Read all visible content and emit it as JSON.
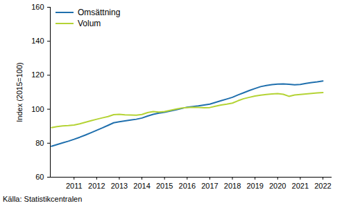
{
  "chart_data": {
    "type": "line",
    "x": [
      2010,
      2010.25,
      2010.5,
      2010.75,
      2011,
      2011.25,
      2011.5,
      2011.75,
      2012,
      2012.25,
      2012.5,
      2012.75,
      2013,
      2013.25,
      2013.5,
      2013.75,
      2014,
      2014.25,
      2014.5,
      2014.75,
      2015,
      2015.25,
      2015.5,
      2015.75,
      2016,
      2016.25,
      2016.5,
      2016.75,
      2017,
      2017.25,
      2017.5,
      2017.75,
      2018,
      2018.25,
      2018.5,
      2018.75,
      2019,
      2019.25,
      2019.5,
      2019.75,
      2020,
      2020.25,
      2020.5,
      2020.75,
      2021,
      2021.25,
      2021.5,
      2021.75,
      2022
    ],
    "series": [
      {
        "name": "Omsättning",
        "color": "#1f6fad",
        "values": [
          78.2,
          79.2,
          80.2,
          81.2,
          82.3,
          83.5,
          84.8,
          86.2,
          87.6,
          89.0,
          90.5,
          92.0,
          92.6,
          93.1,
          93.6,
          94.1,
          94.8,
          96.0,
          97.0,
          97.7,
          98.2,
          98.9,
          99.6,
          100.4,
          101.2,
          101.6,
          102.0,
          102.5,
          103.0,
          104.0,
          105.0,
          106.0,
          107.0,
          108.4,
          109.7,
          111.0,
          112.2,
          113.3,
          114.0,
          114.5,
          114.8,
          114.9,
          114.7,
          114.4,
          114.6,
          115.2,
          115.7,
          116.1,
          116.6
        ]
      },
      {
        "name": "Volum",
        "color": "#b4d334",
        "values": [
          89.2,
          89.8,
          90.2,
          90.4,
          90.7,
          91.4,
          92.3,
          93.2,
          94.1,
          94.9,
          95.7,
          96.8,
          97.0,
          96.7,
          96.6,
          96.5,
          96.9,
          98.0,
          98.6,
          98.3,
          98.6,
          99.3,
          100.0,
          100.7,
          101.0,
          101.2,
          101.1,
          100.9,
          101.0,
          101.8,
          102.5,
          103.0,
          103.6,
          105.0,
          106.2,
          107.0,
          107.8,
          108.3,
          108.7,
          109.0,
          109.2,
          108.8,
          107.6,
          108.4,
          108.7,
          109.0,
          109.3,
          109.6,
          109.8
        ]
      }
    ],
    "y_label": "Index (2015=100)",
    "caption": "Källa: Statistikcentralen",
    "xlim": [
      2009.95,
      2022.4
    ],
    "xticks": [
      2011,
      2012,
      2013,
      2014,
      2015,
      2016,
      2017,
      2018,
      2019,
      2020,
      2021,
      2022
    ],
    "ylim": [
      60,
      160
    ],
    "yticks": [
      60,
      80,
      100,
      120,
      140,
      160
    ],
    "grid": false,
    "legend": "top-left"
  }
}
